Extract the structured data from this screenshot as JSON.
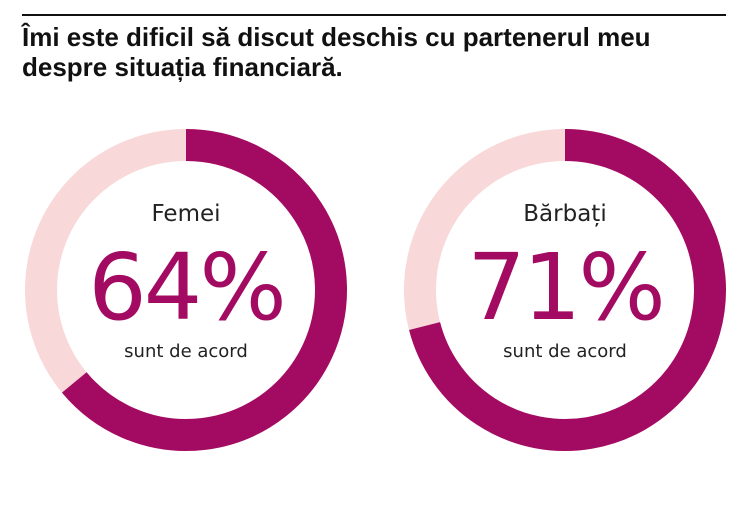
{
  "title": "Îmi este dificil să discut deschis cu partenerul meu despre situația financiară.",
  "colors": {
    "accent": "#A30B62",
    "track": "#F8D8D8",
    "text": "#111111"
  },
  "chart_data": [
    {
      "type": "pie",
      "variant": "donut",
      "label": "Femei",
      "value": 64,
      "display": "64%",
      "caption": "sunt de acord"
    },
    {
      "type": "pie",
      "variant": "donut",
      "label": "Bărbați",
      "value": 71,
      "display": "71%",
      "caption": "sunt de acord"
    }
  ]
}
